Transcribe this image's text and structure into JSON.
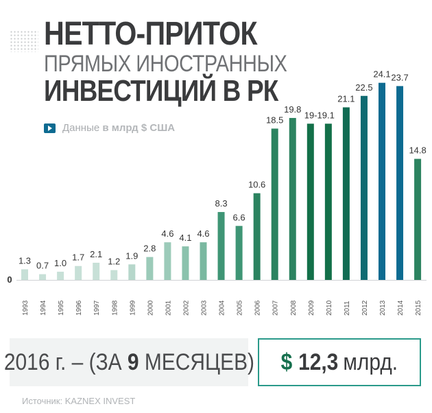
{
  "title": {
    "line1": "НЕТТО-ПРИТОК",
    "line2": "ПРЯМЫХ ИНОСТРАННЫХ",
    "line3": "ИНВЕСТИЦИЙ В РК"
  },
  "subtitle": {
    "prefix": "Данные",
    "unit": "в млрд $ США"
  },
  "chart_data": {
    "type": "bar",
    "categories": [
      "1993",
      "1994",
      "1995",
      "1996",
      "1997",
      "1998",
      "1999",
      "2000",
      "2001",
      "2002",
      "2003",
      "2004",
      "2005",
      "2006",
      "2007",
      "2008",
      "2009",
      "2010",
      "2011",
      "2012",
      "2013",
      "2014",
      "2015"
    ],
    "values": [
      1.3,
      0.7,
      1.0,
      1.7,
      2.1,
      1.2,
      1.9,
      2.8,
      4.6,
      4.1,
      4.6,
      8.3,
      6.6,
      10.6,
      18.5,
      19.8,
      19.1,
      19.1,
      21.1,
      22.5,
      24.1,
      23.7,
      14.8
    ],
    "labels": [
      "1.3",
      "0.7",
      "1.0",
      "1.7",
      "2.1",
      "1.2",
      "1.9",
      "2.8",
      "4.6",
      "4.1",
      "4.6",
      "8.3",
      "6.6",
      "10.6",
      "18.5",
      "19.8",
      "19-19.1",
      "",
      "21.1",
      "22.5",
      "24.1",
      "23.7",
      "14.8"
    ],
    "colors": [
      "#c7e0d7",
      "#c7e0d7",
      "#c7e0d7",
      "#c7e0d7",
      "#c7e0d7",
      "#c7e0d7",
      "#b6d7cb",
      "#9ccbb9",
      "#9ccbb9",
      "#8bc2ad",
      "#7ab8a0",
      "#3f9575",
      "#3f9575",
      "#2c8360",
      "#2c8360",
      "#2c8360",
      "#137049",
      "#137049",
      "#106b53",
      "#0f6b72",
      "#0d6b91",
      "#0d6b91",
      "#2c8360"
    ],
    "y_zero_label": "0",
    "ylim": [
      0,
      25.5
    ],
    "title": "НЕТТО-ПРИТОК ПРЯМЫХ ИНОСТРАННЫХ ИНВЕСТИЦИЙ В РК",
    "ylabel": "в млрд $ США"
  },
  "summary": {
    "period_prefix": "2016 г. – (ЗА ",
    "period_months": "9",
    "period_suffix": " МЕСЯЦЕВ)",
    "currency": "$",
    "amount": "12,3",
    "unit": "млрд."
  },
  "source": "Источник: KAZNEX INVEST"
}
